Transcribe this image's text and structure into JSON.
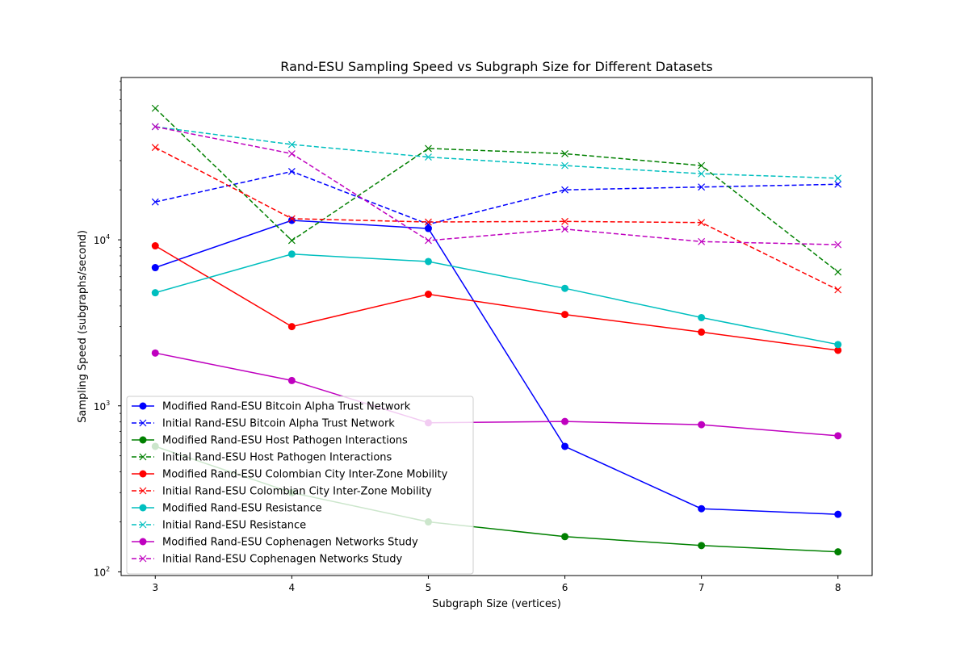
{
  "chart_data": {
    "type": "line",
    "title": "Rand-ESU Sampling Speed vs Subgraph Size for Different Datasets",
    "xlabel": "Subgraph Size (vertices)",
    "ylabel": "Sampling Speed (subgraphs/second)",
    "yscale": "log",
    "ylim": [
      95,
      95000
    ],
    "xlim": [
      2.75,
      8.25
    ],
    "x": [
      3,
      4,
      5,
      6,
      7,
      8
    ],
    "x_ticks": [
      "3",
      "4",
      "5",
      "6",
      "7",
      "8"
    ],
    "y_ticks": [
      {
        "value": 100,
        "base": "10",
        "exp": "2"
      },
      {
        "value": 1000,
        "base": "10",
        "exp": "3"
      },
      {
        "value": 10000,
        "base": "10",
        "exp": "4"
      }
    ],
    "grid": false,
    "legend_position": "lower-left",
    "series": [
      {
        "name": "Modified Rand-ESU Bitcoin Alpha Trust Network",
        "color": "#0000ff",
        "style": "solid",
        "marker": "circle",
        "values": [
          6800,
          13100,
          11700,
          570,
          240,
          222
        ]
      },
      {
        "name": "Initial Rand-ESU Bitcoin Alpha Trust Network",
        "color": "#0000ff",
        "style": "dashed",
        "marker": "x",
        "values": [
          16900,
          25800,
          12400,
          20000,
          20800,
          21600
        ]
      },
      {
        "name": "Modified Rand-ESU Host Pathogen Interactions",
        "color": "#008000",
        "style": "solid",
        "marker": "circle",
        "values": [
          570,
          300,
          200,
          163,
          144,
          132
        ]
      },
      {
        "name": "Initial Rand-ESU Host Pathogen Interactions",
        "color": "#008000",
        "style": "dashed",
        "marker": "x",
        "values": [
          62000,
          9900,
          35500,
          33000,
          28000,
          6400
        ]
      },
      {
        "name": "Modified Rand-ESU Colombian City Inter-Zone Mobility",
        "color": "#ff0000",
        "style": "solid",
        "marker": "circle",
        "values": [
          9200,
          3000,
          4700,
          3550,
          2780,
          2160
        ]
      },
      {
        "name": "Initial Rand-ESU Colombian City Inter-Zone Mobility",
        "color": "#ff0000",
        "style": "dashed",
        "marker": "x",
        "values": [
          36000,
          13400,
          12800,
          12900,
          12700,
          5000
        ]
      },
      {
        "name": "Modified Rand-ESU Resistance",
        "color": "#00bfbf",
        "style": "solid",
        "marker": "circle",
        "values": [
          4800,
          8200,
          7400,
          5100,
          3400,
          2340
        ]
      },
      {
        "name": "Initial Rand-ESU Resistance",
        "color": "#00bfbf",
        "style": "dashed",
        "marker": "x",
        "values": [
          48000,
          37500,
          31500,
          28000,
          25000,
          23500
        ]
      },
      {
        "name": "Modified Rand-ESU Cophenagen Networks Study",
        "color": "#bf00bf",
        "style": "solid",
        "marker": "circle",
        "values": [
          2080,
          1420,
          790,
          805,
          770,
          660
        ]
      },
      {
        "name": "Initial Rand-ESU Cophenagen Networks Study",
        "color": "#bf00bf",
        "style": "dashed",
        "marker": "x",
        "values": [
          48000,
          33000,
          9900,
          11600,
          9750,
          9350
        ]
      }
    ]
  }
}
